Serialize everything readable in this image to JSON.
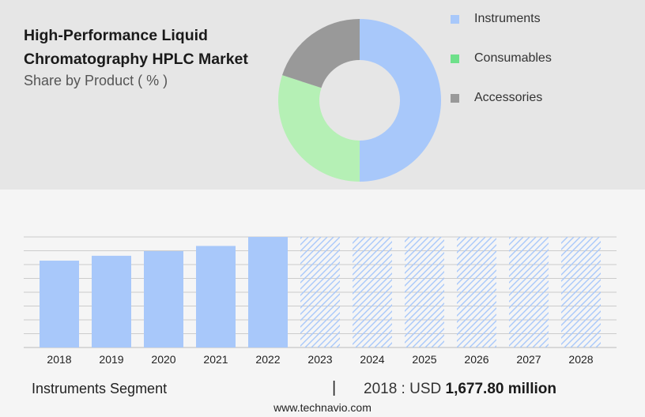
{
  "title_line1": "High-Performance Liquid",
  "title_line2": "Chromatography HPLC Market",
  "subtitle": "Share by Product ( % )",
  "colors": {
    "Instruments": "#a8c8fa",
    "Consumables": "#b5f0b5",
    "Accessories": "#999999",
    "legend_Consumables": "#6ee08a"
  },
  "chart_data": [
    {
      "type": "pie",
      "labels": [
        "Instruments",
        "Consumables",
        "Accessories"
      ],
      "values": [
        50,
        30,
        20
      ],
      "legend_position": "right"
    },
    {
      "type": "bar",
      "categories": [
        "2018",
        "2019",
        "2020",
        "2021",
        "2022",
        "2023",
        "2024",
        "2025",
        "2026",
        "2027",
        "2028"
      ],
      "values": [
        1677.8,
        1772,
        1862,
        1962,
        2136,
        2136,
        2136,
        2136,
        2136,
        2136,
        2136
      ],
      "forecast_from": "2023",
      "grid": true
    }
  ],
  "footer": {
    "segment": "Instruments Segment",
    "separator": "|",
    "year_label": "2018 : USD",
    "value": "1,677.80 million"
  },
  "site": "www.technavio.com"
}
